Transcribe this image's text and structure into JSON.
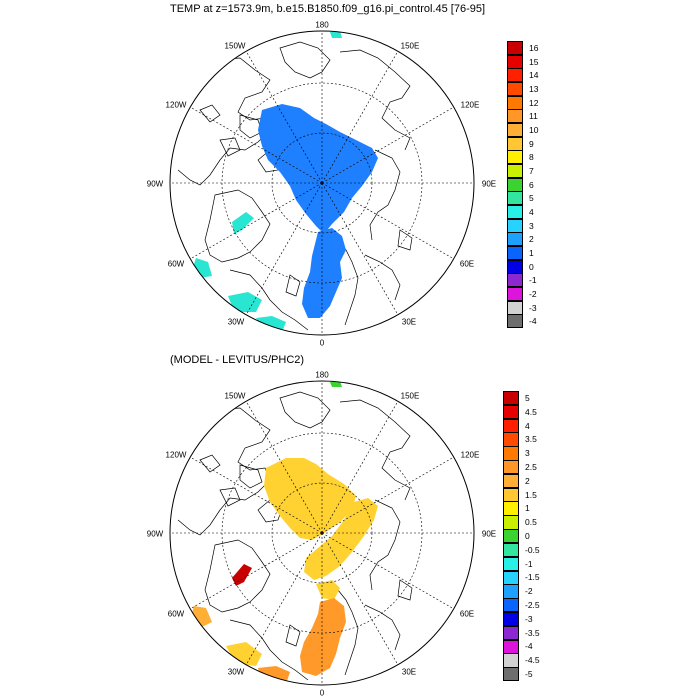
{
  "top_panel": {
    "title": "TEMP at z=1573.9m, b.e15.B1850.f09_g16.pi_control.45 [76-95]",
    "lon_labels": {
      "l180": "180",
      "l150e": "150E",
      "l120e": "120E",
      "l90e": "90E",
      "l60e": "60E",
      "l30e": "30E",
      "l0": "0",
      "l30w": "30W",
      "l60w": "60W",
      "l90w": "90W",
      "l120w": "120W",
      "l150w": "150W"
    },
    "colorbar": {
      "labels": [
        "16",
        "15",
        "14",
        "13",
        "12",
        "11",
        "10",
        "9",
        "8",
        "7",
        "6",
        "5",
        "4",
        "3",
        "2",
        "1",
        "0",
        "-1",
        "-2",
        "-3",
        "-4"
      ],
      "colors": [
        "#c80000",
        "#e60000",
        "#ff2000",
        "#ff4a00",
        "#ff7800",
        "#ff9628",
        "#ffae36",
        "#ffc832",
        "#fff000",
        "#c8f000",
        "#3cd232",
        "#32e6a0",
        "#28f0e6",
        "#28d2ff",
        "#1ea0ff",
        "#0a64ff",
        "#0000e6",
        "#8c28d2",
        "#dc14dc",
        "#d2d2d2",
        "#6e6e6e"
      ]
    }
  },
  "bottom_panel": {
    "title": "(MODEL - LEVITUS/PHC2)",
    "lon_labels": {
      "l180": "180",
      "l150e": "150E",
      "l120e": "120E",
      "l90e": "90E",
      "l60e": "60E",
      "l30e": "30E",
      "l0": "0",
      "l30w": "30W",
      "l60w": "60W",
      "l90w": "90W",
      "l120w": "120W",
      "l150w": "150W"
    },
    "colorbar": {
      "labels": [
        "5",
        "4.5",
        "4",
        "3.5",
        "3",
        "2.5",
        "2",
        "1.5",
        "1",
        "0.5",
        "0",
        "-0.5",
        "-1",
        "-1.5",
        "-2",
        "-2.5",
        "-3",
        "-3.5",
        "-4",
        "-4.5",
        "-5"
      ],
      "colors": [
        "#c80000",
        "#e60000",
        "#ff2000",
        "#ff4a00",
        "#ff7800",
        "#ff9628",
        "#ffae36",
        "#ffc832",
        "#fff000",
        "#c8f000",
        "#3cd232",
        "#32e6a0",
        "#28f0e6",
        "#28d2ff",
        "#1ea0ff",
        "#0a64ff",
        "#0000e6",
        "#8c28d2",
        "#dc14dc",
        "#d2d2d2",
        "#6e6e6e"
      ]
    }
  }
}
